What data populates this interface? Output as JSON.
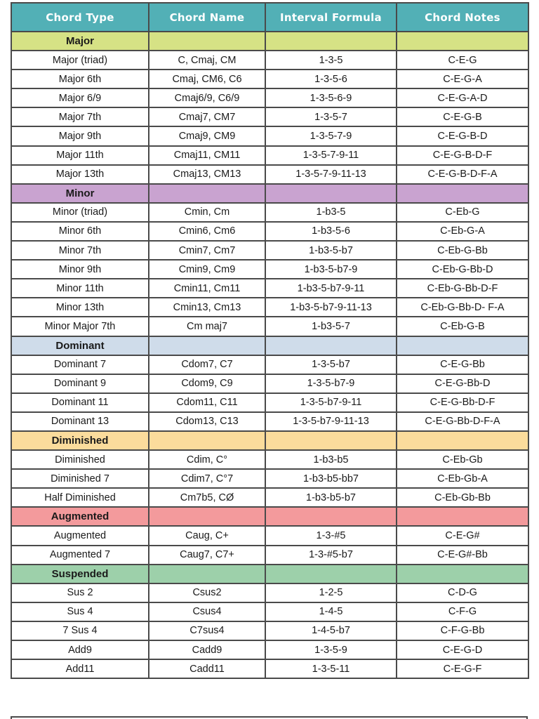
{
  "table": {
    "columns": [
      "Chord Type",
      "Chord Name",
      "Interval Formula",
      "Chord Notes"
    ],
    "header_color": "#52b0b6",
    "sections": [
      {
        "name": "Major",
        "color": "#d6e285",
        "rows": [
          [
            "Major (triad)",
            "C, Cmaj, CM",
            "1-3-5",
            "C-E-G"
          ],
          [
            "Major 6th",
            "Cmaj, CM6, C6",
            "1-3-5-6",
            "C-E-G-A"
          ],
          [
            "Major 6/9",
            "Cmaj6/9, C6/9",
            "1-3-5-6-9",
            "C-E-G-A-D"
          ],
          [
            "Major 7th",
            "Cmaj7, CM7",
            "1-3-5-7",
            "C-E-G-B"
          ],
          [
            "Major 9th",
            "Cmaj9, CM9",
            "1-3-5-7-9",
            "C-E-G-B-D"
          ],
          [
            "Major 11th",
            "Cmaj11, CM11",
            "1-3-5-7-9-11",
            "C-E-G-B-D-F"
          ],
          [
            "Major 13th",
            "Cmaj13, CM13",
            "1-3-5-7-9-11-13",
            "C-E-G-B-D-F-A"
          ]
        ]
      },
      {
        "name": "Minor",
        "color": "#c9a3d0",
        "rows": [
          [
            "Minor (triad)",
            "Cmin, Cm",
            "1-b3-5",
            "C-Eb-G"
          ],
          [
            "Minor 6th",
            "Cmin6, Cm6",
            "1-b3-5-6",
            "C-Eb-G-A"
          ],
          [
            "Minor 7th",
            "Cmin7, Cm7",
            "1-b3-5-b7",
            "C-Eb-G-Bb"
          ],
          [
            "Minor 9th",
            "Cmin9, Cm9",
            "1-b3-5-b7-9",
            "C-Eb-G-Bb-D"
          ],
          [
            "Minor 11th",
            "Cmin11, Cm11",
            "1-b3-5-b7-9-11",
            "C-Eb-G-Bb-D-F"
          ],
          [
            "Minor 13th",
            "Cmin13, Cm13",
            "1-b3-5-b7-9-11-13",
            "C-Eb-G-Bb-D- F-A"
          ],
          [
            "Minor Major 7th",
            "Cm maj7",
            "1-b3-5-7",
            "C-Eb-G-B"
          ]
        ]
      },
      {
        "name": "Dominant",
        "color": "#cfdcea",
        "rows": [
          [
            "Dominant 7",
            "Cdom7, C7",
            "1-3-5-b7",
            "C-E-G-Bb"
          ],
          [
            "Dominant 9",
            "Cdom9, C9",
            "1-3-5-b7-9",
            "C-E-G-Bb-D"
          ],
          [
            "Dominant 11",
            "Cdom11, C11",
            "1-3-5-b7-9-11",
            "C-E-G-Bb-D-F"
          ],
          [
            "Dominant 13",
            "Cdom13, C13",
            "1-3-5-b7-9-11-13",
            "C-E-G-Bb-D-F-A"
          ]
        ]
      },
      {
        "name": "Diminished",
        "color": "#fbdc9c",
        "rows": [
          [
            "Diminished",
            "Cdim, C°",
            "1-b3-b5",
            "C-Eb-Gb"
          ],
          [
            "Diminished 7",
            "Cdim7, C°7",
            "1-b3-b5-bb7",
            "C-Eb-Gb-A"
          ],
          [
            "Half Diminished",
            "Cm7b5, CØ",
            "1-b3-b5-b7",
            "C-Eb-Gb-Bb"
          ]
        ]
      },
      {
        "name": "Augmented",
        "color": "#f39a9c",
        "rows": [
          [
            "Augmented",
            "Caug, C+",
            "1-3-#5",
            "C-E-G#"
          ],
          [
            "Augmented 7",
            "Caug7, C7+",
            "1-3-#5-b7",
            "C-E-G#-Bb"
          ]
        ]
      },
      {
        "name": "Suspended",
        "color": "#9dd0aa",
        "rows": [
          [
            "Sus 2",
            "Csus2",
            "1-2-5",
            "C-D-G"
          ],
          [
            "Sus 4",
            "Csus4",
            "1-4-5",
            "C-F-G"
          ],
          [
            "7 Sus 4",
            "C7sus4",
            "1-4-5-b7",
            "C-F-G-Bb"
          ],
          [
            "Add9",
            "Cadd9",
            "1-3-5-9",
            "C-E-G-D"
          ],
          [
            "Add11",
            "Cadd11",
            "1-3-5-11",
            "C-E-G-F"
          ]
        ]
      }
    ]
  }
}
